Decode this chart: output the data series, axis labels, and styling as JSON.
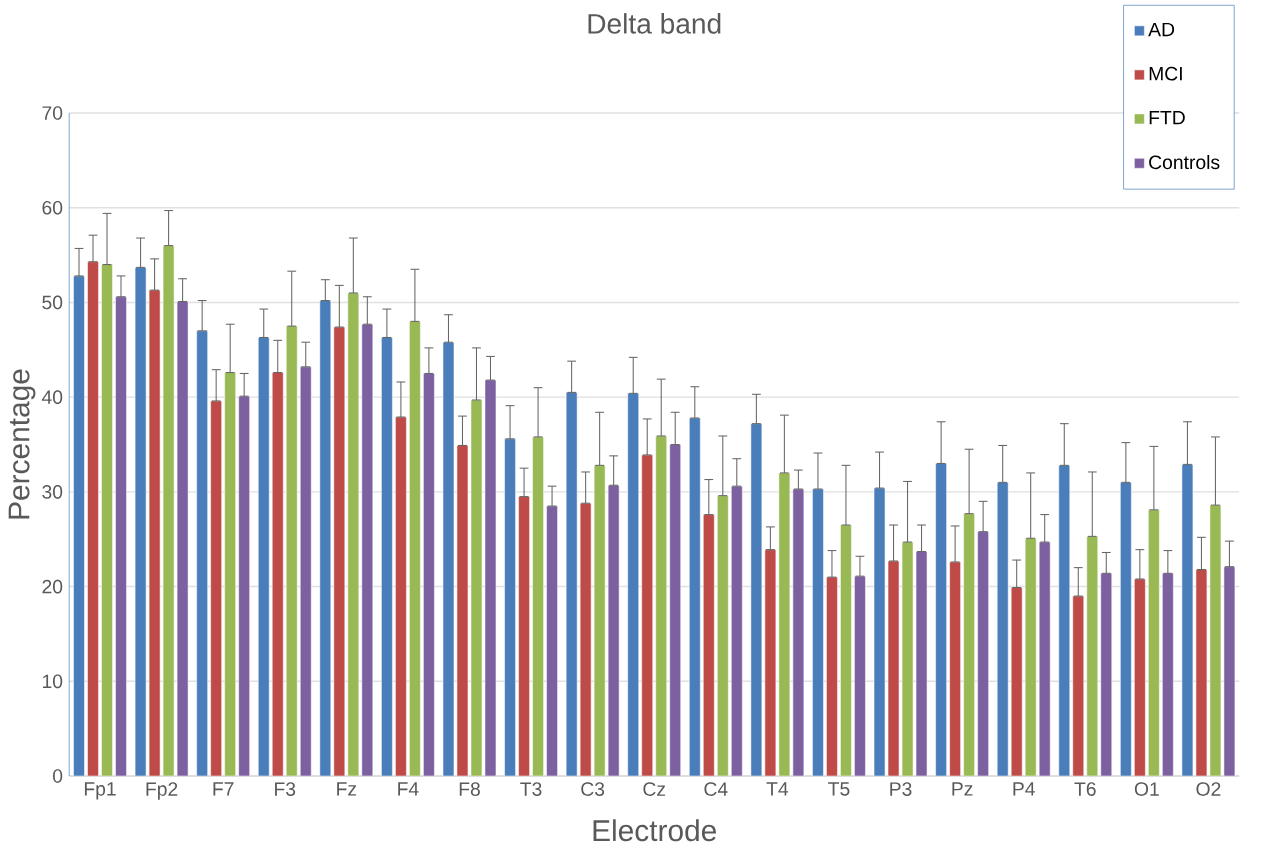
{
  "chart_data": {
    "type": "bar",
    "title": "Delta band",
    "xlabel": "Electrode",
    "ylabel": "Percentage",
    "categories": [
      "Fp1",
      "Fp2",
      "F7",
      "F3",
      "Fz",
      "F4",
      "F8",
      "T3",
      "C3",
      "Cz",
      "C4",
      "T4",
      "T5",
      "P3",
      "Pz",
      "P4",
      "T6",
      "O1",
      "O2"
    ],
    "series": [
      {
        "name": "AD",
        "color": "#4a7ebb",
        "values": [
          52.8,
          53.7,
          47.0,
          46.3,
          50.2,
          46.3,
          45.8,
          35.6,
          40.5,
          40.4,
          37.8,
          37.2,
          30.3,
          30.4,
          33.0,
          31.0,
          32.8,
          31.0,
          32.9
        ],
        "errors": [
          [
            52.8,
            55.7
          ],
          [
            53.7,
            56.8
          ],
          [
            47.0,
            50.2
          ],
          [
            46.3,
            49.3
          ],
          [
            50.2,
            52.4
          ],
          [
            46.3,
            49.3
          ],
          [
            45.8,
            48.7
          ],
          [
            35.6,
            39.1
          ],
          [
            40.5,
            43.8
          ],
          [
            40.4,
            44.2
          ],
          [
            37.8,
            41.1
          ],
          [
            37.2,
            40.3
          ],
          [
            30.3,
            34.1
          ],
          [
            30.4,
            34.2
          ],
          [
            33.0,
            37.4
          ],
          [
            31.0,
            34.9
          ],
          [
            32.8,
            37.2
          ],
          [
            31.0,
            35.2
          ],
          [
            32.9,
            37.4
          ]
        ]
      },
      {
        "name": "MCI",
        "color": "#be4b48",
        "values": [
          54.3,
          51.3,
          39.6,
          42.6,
          47.4,
          37.9,
          34.9,
          29.5,
          28.8,
          33.9,
          27.6,
          23.9,
          21.0,
          22.7,
          22.6,
          19.9,
          19.0,
          20.8,
          21.8
        ],
        "errors": [
          [
            54.3,
            57.1
          ],
          [
            51.3,
            54.6
          ],
          [
            39.6,
            42.9
          ],
          [
            42.6,
            46.0
          ],
          [
            47.4,
            51.8
          ],
          [
            37.9,
            41.6
          ],
          [
            34.9,
            38.0
          ],
          [
            29.5,
            32.5
          ],
          [
            28.8,
            32.1
          ],
          [
            33.9,
            37.7
          ],
          [
            27.6,
            31.3
          ],
          [
            23.9,
            26.3
          ],
          [
            21.0,
            23.8
          ],
          [
            22.7,
            26.5
          ],
          [
            22.6,
            26.4
          ],
          [
            19.9,
            22.8
          ],
          [
            19.0,
            22.0
          ],
          [
            20.8,
            23.9
          ],
          [
            21.8,
            25.2
          ]
        ]
      },
      {
        "name": "FTD",
        "color": "#98b954",
        "values": [
          54.0,
          56.0,
          42.6,
          47.5,
          51.0,
          48.0,
          39.7,
          35.8,
          32.8,
          35.9,
          29.6,
          32.0,
          26.5,
          24.7,
          27.7,
          25.1,
          25.3,
          28.1,
          28.6
        ],
        "errors": [
          [
            54.0,
            59.4
          ],
          [
            56.0,
            59.7
          ],
          [
            42.6,
            47.7
          ],
          [
            47.5,
            53.3
          ],
          [
            51.0,
            56.8
          ],
          [
            48.0,
            53.5
          ],
          [
            39.7,
            45.2
          ],
          [
            35.8,
            41.0
          ],
          [
            32.8,
            38.4
          ],
          [
            35.9,
            41.9
          ],
          [
            29.6,
            35.9
          ],
          [
            32.0,
            38.1
          ],
          [
            26.5,
            32.8
          ],
          [
            24.7,
            31.1
          ],
          [
            27.7,
            34.5
          ],
          [
            25.1,
            32.0
          ],
          [
            25.3,
            32.1
          ],
          [
            28.1,
            34.8
          ],
          [
            28.6,
            35.8
          ]
        ]
      },
      {
        "name": "Controls",
        "color": "#7d60a0",
        "values": [
          50.6,
          50.1,
          40.1,
          43.2,
          47.7,
          42.5,
          41.8,
          28.5,
          30.7,
          35.0,
          30.6,
          30.3,
          21.1,
          23.7,
          25.8,
          24.7,
          21.4,
          21.4,
          22.1
        ],
        "errors": [
          [
            50.6,
            52.8
          ],
          [
            50.1,
            52.5
          ],
          [
            40.1,
            42.5
          ],
          [
            43.2,
            45.8
          ],
          [
            47.7,
            50.6
          ],
          [
            42.5,
            45.2
          ],
          [
            41.8,
            44.3
          ],
          [
            28.5,
            30.6
          ],
          [
            30.7,
            33.8
          ],
          [
            35.0,
            38.4
          ],
          [
            30.6,
            33.5
          ],
          [
            30.3,
            32.3
          ],
          [
            21.1,
            23.2
          ],
          [
            23.7,
            26.5
          ],
          [
            25.8,
            29.0
          ],
          [
            24.7,
            27.6
          ],
          [
            21.4,
            23.6
          ],
          [
            21.4,
            23.8
          ],
          [
            22.1,
            24.8
          ]
        ]
      }
    ],
    "ylim": [
      0,
      70
    ],
    "yticks": [
      0,
      10,
      20,
      30,
      40,
      50,
      60,
      70
    ],
    "grid": "y",
    "legend": "top right"
  }
}
